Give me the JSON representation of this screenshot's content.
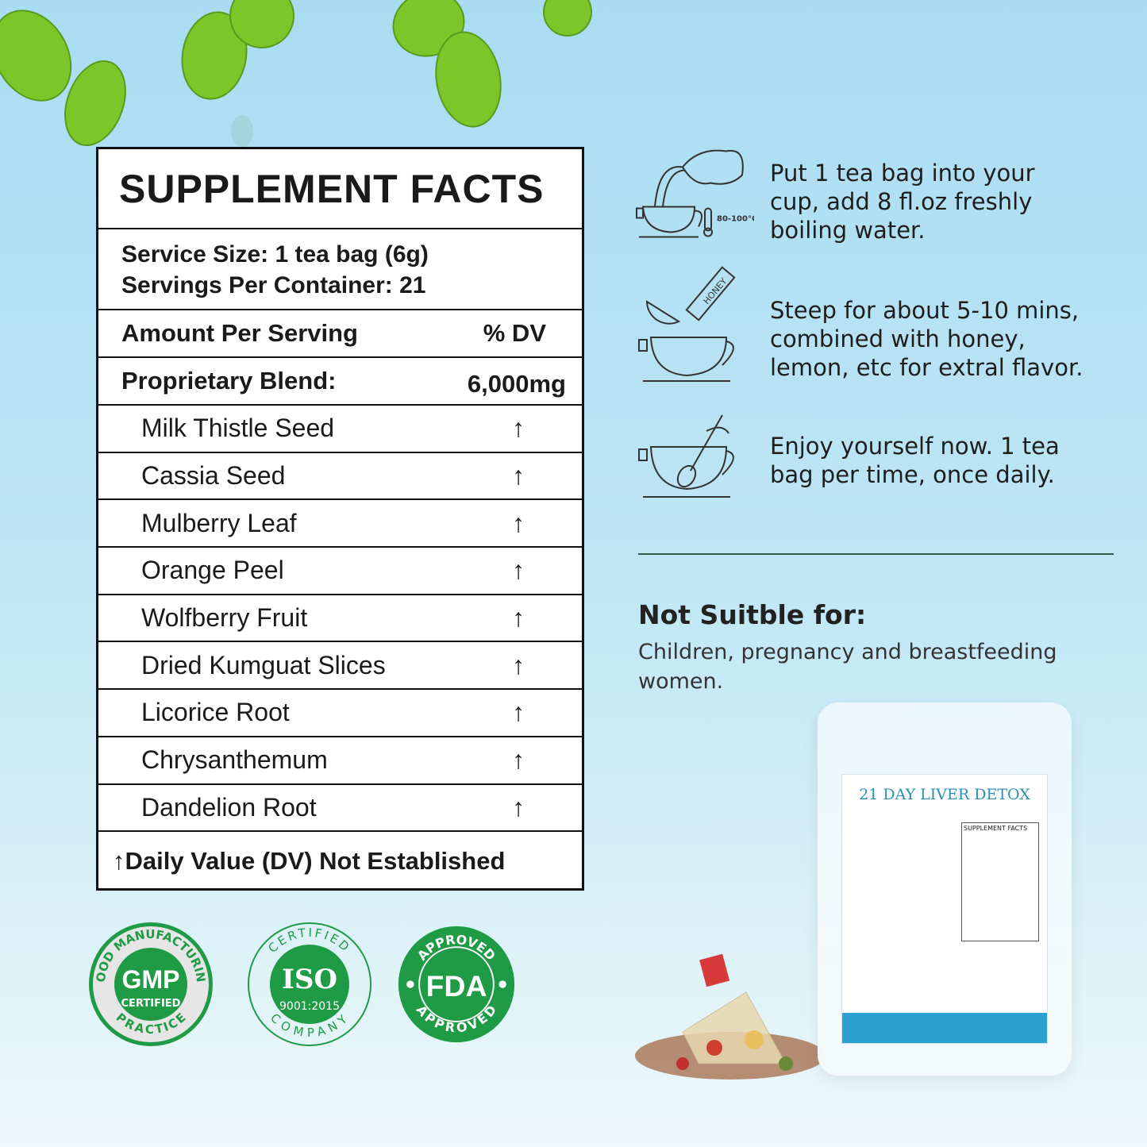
{
  "supplement_facts": {
    "title": "SUPPLEMENT FACTS",
    "serving_size": "Service Size: 1 tea bag (6g)",
    "servings_per_container": "Servings Per Container: 21",
    "amount_header": "Amount Per Serving",
    "dv_header": "% DV",
    "blend_label": "Proprietary Blend:",
    "blend_amount": "6,000mg",
    "ingredients": [
      {
        "name": "Milk Thistle Seed",
        "dv": "↑"
      },
      {
        "name": "Cassia Seed",
        "dv": "↑"
      },
      {
        "name": "Mulberry Leaf",
        "dv": "↑"
      },
      {
        "name": "Orange Peel",
        "dv": "↑"
      },
      {
        "name": "Wolfberry Fruit",
        "dv": "↑"
      },
      {
        "name": "Dried Kumguat Slices",
        "dv": "↑"
      },
      {
        "name": "Licorice Root",
        "dv": "↑"
      },
      {
        "name": "Chrysanthemum",
        "dv": "↑"
      },
      {
        "name": "Dandelion Root",
        "dv": "↑"
      }
    ],
    "footnote": "↑Daily Value (DV) Not Established"
  },
  "steps": [
    {
      "icon": "teapot-cup-icon",
      "text": "Put 1 tea bag into your cup, add 8 fl.oz freshly boiling water.",
      "temp_label": "80-100°C"
    },
    {
      "icon": "honey-lemon-cup-icon",
      "text": "Steep for about 5-10 mins, combined with honey, lemon, etc for extral flavor.",
      "honey_label": "HONEY"
    },
    {
      "icon": "stir-spoon-cup-icon",
      "text": "Enjoy yourself now. 1 tea bag per time, once daily."
    }
  ],
  "warning": {
    "heading": "Not Suitble for:",
    "text": "Children, pregnancy and breastfeeding women."
  },
  "badges": {
    "gmp": {
      "top": "GOOD MANUFACTURING",
      "main": "GMP",
      "sub": "CERTIFIED",
      "bottom": "PRACTICE"
    },
    "iso": {
      "top": "CERTIFIED",
      "main": "ISO",
      "sub": "9001:2015",
      "bottom": "COMPANY"
    },
    "fda": {
      "top": "APPROVED",
      "main": "FDA",
      "bottom": "APPROVED"
    }
  },
  "product": {
    "title": "21 DAY LIVER DETOX",
    "facts_label": "SUPPLEMENT FACTS"
  },
  "colors": {
    "badge_green": "#1f9a45",
    "accent_blue": "#2a8fb7",
    "leaf_green": "#7cc62a"
  }
}
